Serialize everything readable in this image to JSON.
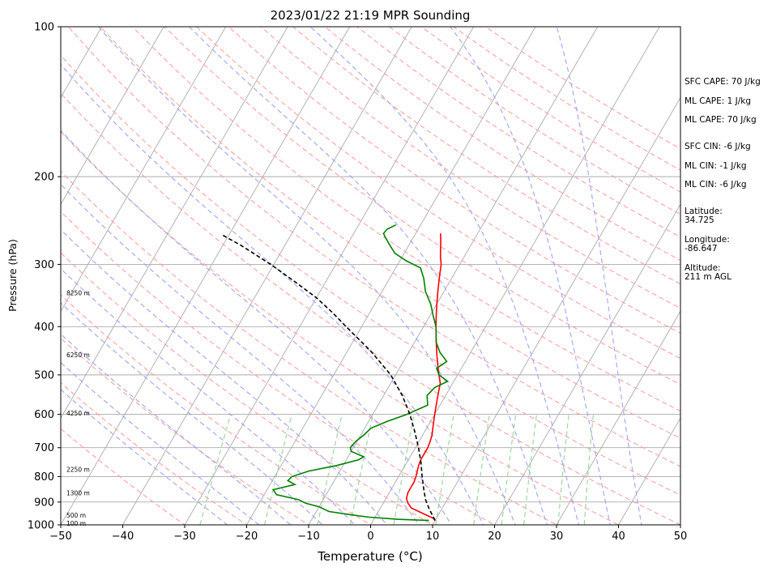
{
  "chart_data": {
    "type": "line",
    "title": "2023/01/22 21:19 MPR Sounding",
    "xlabel": "Temperature (°C)",
    "ylabel": "Pressure (hPa)",
    "xlim": [
      -50,
      50
    ],
    "ylim": [
      1000,
      100
    ],
    "y_scale": "log",
    "x_ticks": [
      "−50",
      "−40",
      "−30",
      "−20",
      "−10",
      "0",
      "10",
      "20",
      "30",
      "40",
      "50"
    ],
    "y_ticks": [
      "100",
      "200",
      "300",
      "400",
      "500",
      "600",
      "700",
      "800",
      "900",
      "1000"
    ],
    "grid": true,
    "height_labels": [
      {
        "p": 995,
        "label": "100 m"
      },
      {
        "p": 957,
        "label": "500 m"
      },
      {
        "p": 864,
        "label": "1300 m"
      },
      {
        "p": 775,
        "label": "2250 m"
      },
      {
        "p": 598,
        "label": "4250 m"
      },
      {
        "p": 456,
        "label": "6250 m"
      },
      {
        "p": 343,
        "label": "8250 m"
      }
    ],
    "series": [
      {
        "role": "temperature",
        "color": "#ff0000",
        "points": [
          [
            10,
            980
          ],
          [
            9.5,
            970
          ],
          [
            8.5,
            960
          ],
          [
            7,
            945
          ],
          [
            5,
            925
          ],
          [
            4,
            905
          ],
          [
            3.3,
            885
          ],
          [
            3,
            860
          ],
          [
            3,
            840
          ],
          [
            3,
            820
          ],
          [
            2.8,
            800
          ],
          [
            2.5,
            780
          ],
          [
            2.2,
            760
          ],
          [
            2,
            740
          ],
          [
            2,
            720
          ],
          [
            2,
            700
          ],
          [
            1.8,
            680
          ],
          [
            1.5,
            660
          ],
          [
            1,
            640
          ],
          [
            0.5,
            620
          ],
          [
            0,
            600
          ],
          [
            -0.5,
            580
          ],
          [
            -1,
            560
          ],
          [
            -1.5,
            540
          ],
          [
            -2,
            520
          ],
          [
            -3,
            500
          ],
          [
            -4,
            480
          ],
          [
            -5,
            460
          ],
          [
            -6,
            440
          ],
          [
            -7,
            420
          ],
          [
            -8,
            400
          ],
          [
            -9,
            380
          ],
          [
            -10,
            360
          ],
          [
            -11,
            340
          ],
          [
            -12,
            320
          ],
          [
            -13,
            300
          ],
          [
            -13.8,
            290
          ],
          [
            -14.5,
            280
          ],
          [
            -15.2,
            270
          ],
          [
            -16,
            260
          ]
        ]
      },
      {
        "role": "dewpoint",
        "color": "#008000",
        "points": [
          [
            9,
            980
          ],
          [
            4,
            975
          ],
          [
            -1,
            965
          ],
          [
            -4,
            955
          ],
          [
            -8,
            940
          ],
          [
            -10,
            920
          ],
          [
            -12.5,
            905
          ],
          [
            -14,
            890
          ],
          [
            -18,
            870
          ],
          [
            -19,
            850
          ],
          [
            -16,
            830
          ],
          [
            -17.5,
            815
          ],
          [
            -17.2,
            800
          ],
          [
            -15,
            780
          ],
          [
            -11,
            760
          ],
          [
            -8,
            740
          ],
          [
            -7.5,
            730
          ],
          [
            -10,
            712
          ],
          [
            -10.5,
            700
          ],
          [
            -10.2,
            680
          ],
          [
            -9.5,
            660
          ],
          [
            -9,
            640
          ],
          [
            -7,
            620
          ],
          [
            -4.5,
            600
          ],
          [
            -2,
            575
          ],
          [
            -3,
            550
          ],
          [
            -2.5,
            530
          ],
          [
            -1,
            515
          ],
          [
            -3,
            500
          ],
          [
            -4,
            485
          ],
          [
            -3,
            470
          ],
          [
            -5,
            450
          ],
          [
            -6.5,
            430
          ],
          [
            -8,
            400
          ],
          [
            -9.5,
            380
          ],
          [
            -11,
            360
          ],
          [
            -13,
            340
          ],
          [
            -14.5,
            320
          ],
          [
            -16,
            305
          ],
          [
            -19,
            295
          ],
          [
            -21.5,
            285
          ],
          [
            -23,
            275
          ],
          [
            -24.5,
            265
          ],
          [
            -25.2,
            260
          ],
          [
            -25,
            255
          ],
          [
            -24,
            250
          ]
        ]
      },
      {
        "role": "parcel",
        "color": "#000000",
        "style": "dashed",
        "points": [
          [
            10,
            980
          ],
          [
            8,
            930
          ],
          [
            6.5,
            890
          ],
          [
            5.3,
            850
          ],
          [
            3.8,
            800
          ],
          [
            2.3,
            750
          ],
          [
            0.5,
            700
          ],
          [
            -1.6,
            650
          ],
          [
            -4,
            600
          ],
          [
            -7,
            550
          ],
          [
            -10.8,
            500
          ],
          [
            -16,
            450
          ],
          [
            -22.5,
            400
          ],
          [
            -26,
            375
          ],
          [
            -30,
            350
          ],
          [
            -35,
            325
          ],
          [
            -40.5,
            300
          ],
          [
            -47,
            275
          ],
          [
            -51,
            262
          ]
        ]
      }
    ]
  },
  "annotations": {
    "sfc_cape": "SFC CAPE: 70 J/kg",
    "ml_cape_1": "ML CAPE: 1 J/kg",
    "ml_cape_2": "ML CAPE: 70 J/kg",
    "sfc_cin": "SFC CIN: -6 J/kg",
    "ml_cin_1": "ML CIN: -1 J/kg",
    "ml_cin_2": "ML CIN: -6 J/kg",
    "latitude_label": "Latitude:",
    "latitude_value": "34.725",
    "longitude_label": "Longitude:",
    "longitude_value": "-86.647",
    "altitude_label": "Altitude:",
    "altitude_value": "211 m AGL"
  },
  "colors": {
    "temperature": "#ff0000",
    "dewpoint": "#008000",
    "parcel": "#000000",
    "dry_adiabat": "#ff9999",
    "moist_adiabat": "#9999ff",
    "mixing_ratio": "#88cc88",
    "isotherm": "#999999"
  }
}
